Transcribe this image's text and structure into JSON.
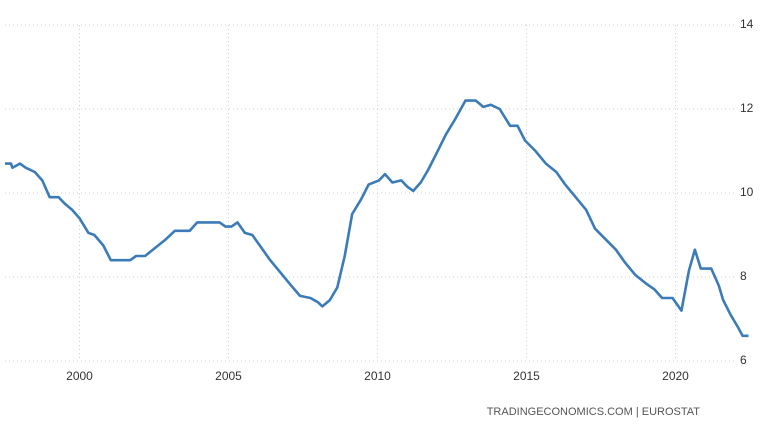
{
  "chart_data": {
    "type": "line",
    "source": "TRADINGECONOMICS.COM | EUROSTAT",
    "x": [
      1997.5,
      1997.7,
      1997.75,
      1998.0,
      1998.2,
      1998.5,
      1998.75,
      1999.0,
      1999.3,
      1999.5,
      1999.75,
      2000.0,
      2000.3,
      2000.5,
      2000.8,
      2001.05,
      2001.55,
      2001.7,
      2001.9,
      2002.2,
      2002.55,
      2002.9,
      2003.2,
      2003.7,
      2003.95,
      2004.7,
      2004.9,
      2005.1,
      2005.3,
      2005.55,
      2005.8,
      2006.05,
      2006.4,
      2006.75,
      2007.1,
      2007.4,
      2007.75,
      2008.0,
      2008.15,
      2008.4,
      2008.65,
      2008.9,
      2009.15,
      2009.45,
      2009.7,
      2010.05,
      2010.25,
      2010.5,
      2010.8,
      2011.0,
      2011.2,
      2011.45,
      2011.7,
      2011.95,
      2012.3,
      2012.6,
      2012.95,
      2013.3,
      2013.55,
      2013.8,
      2014.1,
      2014.45,
      2014.7,
      2014.95,
      2015.3,
      2015.65,
      2016.0,
      2016.3,
      2016.65,
      2017.0,
      2017.3,
      2017.65,
      2018.0,
      2018.3,
      2018.65,
      2019.0,
      2019.3,
      2019.55,
      2019.9,
      2020.2,
      2020.45,
      2020.65,
      2020.85,
      2021.2,
      2021.45,
      2021.6,
      2021.85,
      2022.1,
      2022.25,
      2022.45
    ],
    "series": [
      {
        "color": "#3b7bb8",
        "values": [
          10.7,
          10.7,
          10.6,
          10.7,
          10.6,
          10.5,
          10.3,
          9.9,
          9.9,
          9.75,
          9.6,
          9.4,
          9.05,
          9.0,
          8.75,
          8.4,
          8.4,
          8.4,
          8.5,
          8.5,
          8.7,
          8.9,
          9.1,
          9.1,
          9.3,
          9.3,
          9.2,
          9.2,
          9.3,
          9.05,
          9.0,
          8.75,
          8.4,
          8.1,
          7.8,
          7.55,
          7.5,
          7.4,
          7.3,
          7.45,
          7.75,
          8.5,
          9.5,
          9.85,
          10.2,
          10.3,
          10.45,
          10.25,
          10.3,
          10.15,
          10.05,
          10.25,
          10.55,
          10.9,
          11.4,
          11.75,
          12.2,
          12.2,
          12.05,
          12.1,
          12.0,
          11.6,
          11.6,
          11.25,
          11.0,
          10.7,
          10.5,
          10.2,
          9.9,
          9.6,
          9.15,
          8.9,
          8.65,
          8.35,
          8.05,
          7.85,
          7.7,
          7.5,
          7.5,
          7.2,
          8.15,
          8.65,
          8.2,
          8.2,
          7.8,
          7.45,
          7.1,
          6.8,
          6.6,
          6.6
        ]
      }
    ],
    "xlim": [
      1997.5,
      2022.5
    ],
    "xticks": [
      2000,
      2005,
      2010,
      2015,
      2020
    ],
    "ylim": [
      6,
      14
    ],
    "yticks": [
      6,
      8,
      10,
      12,
      14
    ],
    "grid": true
  }
}
